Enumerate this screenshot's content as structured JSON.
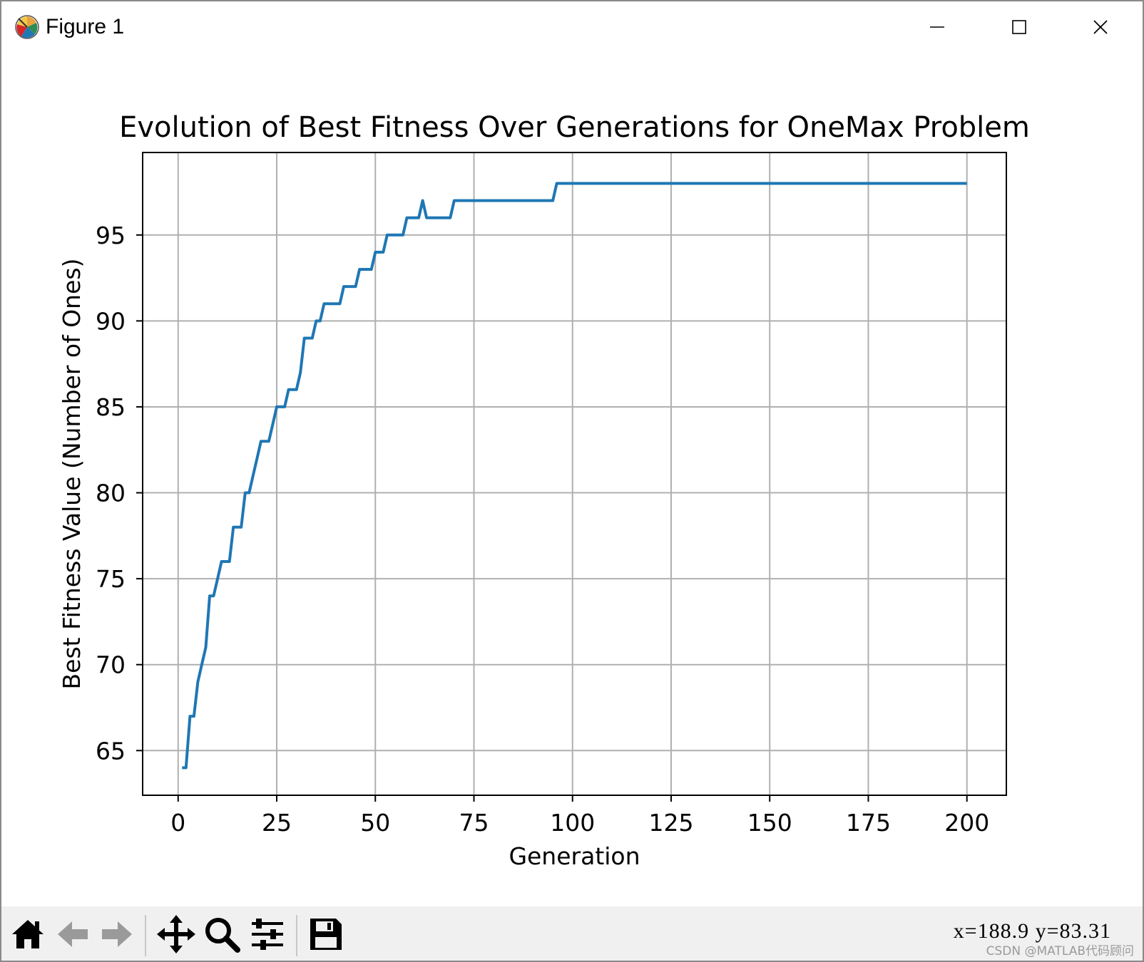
{
  "window": {
    "title": "Figure 1",
    "icon": "matplotlib-logo-icon",
    "controls": {
      "minimize": "minimize-icon",
      "maximize": "maximize-icon",
      "close": "close-icon"
    }
  },
  "toolbar": {
    "buttons": [
      "home-icon",
      "back-arrow-icon",
      "forward-arrow-icon",
      "pan-move-icon",
      "zoom-magnifier-icon",
      "configure-subplots-icon",
      "save-floppy-icon"
    ],
    "coordinates": "x=188.9  y=83.31",
    "watermark": "CSDN @MATLAB代码顾问"
  },
  "colors": {
    "line": "#1f77b4",
    "grid": "#b0b0b0",
    "toolbar_bg": "#f0f0f0"
  },
  "chart_data": {
    "type": "line",
    "title": "Evolution of Best Fitness Over Generations for OneMax Problem",
    "xlabel": "Generation",
    "ylabel": "Best Fitness Value (Number of Ones)",
    "xlim": [
      -9,
      210
    ],
    "ylim": [
      62.4,
      99.8
    ],
    "xticks": [
      0,
      25,
      50,
      75,
      100,
      125,
      150,
      175,
      200
    ],
    "yticks": [
      65,
      70,
      75,
      80,
      85,
      90,
      95
    ],
    "grid": true,
    "series": [
      {
        "color": "#1f77b4",
        "x": [
          1,
          2,
          3,
          4,
          5,
          6,
          7,
          8,
          9,
          10,
          11,
          12,
          13,
          14,
          15,
          16,
          17,
          18,
          19,
          20,
          21,
          22,
          23,
          24,
          25,
          26,
          27,
          28,
          29,
          30,
          31,
          32,
          33,
          34,
          35,
          36,
          37,
          38,
          39,
          40,
          41,
          42,
          43,
          44,
          45,
          46,
          47,
          48,
          49,
          50,
          51,
          52,
          53,
          54,
          55,
          56,
          57,
          58,
          59,
          60,
          61,
          62,
          63,
          64,
          65,
          66,
          67,
          68,
          69,
          70,
          71,
          72,
          73,
          74,
          75,
          76,
          77,
          78,
          79,
          80,
          81,
          82,
          83,
          84,
          85,
          86,
          87,
          88,
          89,
          90,
          91,
          92,
          93,
          94,
          95,
          96,
          97,
          98,
          99,
          100,
          101,
          102,
          103,
          104,
          105,
          106,
          107,
          108,
          109,
          110,
          111,
          112,
          113,
          114,
          115,
          116,
          117,
          118,
          119,
          120,
          121,
          122,
          123,
          124,
          125,
          126,
          127,
          128,
          129,
          130,
          131,
          132,
          133,
          134,
          135,
          136,
          137,
          138,
          139,
          140,
          141,
          142,
          143,
          144,
          145,
          146,
          147,
          148,
          149,
          150,
          151,
          152,
          153,
          154,
          155,
          156,
          157,
          158,
          159,
          160,
          161,
          162,
          163,
          164,
          165,
          166,
          167,
          168,
          169,
          170,
          171,
          172,
          173,
          174,
          175,
          176,
          177,
          178,
          179,
          180,
          181,
          182,
          183,
          184,
          185,
          186,
          187,
          188,
          189,
          190,
          191,
          192,
          193,
          194,
          195,
          196,
          197,
          198,
          199,
          200
        ],
        "values": [
          64,
          64,
          67,
          67,
          69,
          70,
          71,
          74,
          74,
          75,
          76,
          76,
          76,
          78,
          78,
          78,
          80,
          80,
          81,
          82,
          83,
          83,
          83,
          84,
          85,
          85,
          85,
          86,
          86,
          86,
          87,
          89,
          89,
          89,
          90,
          90,
          91,
          91,
          91,
          91,
          91,
          92,
          92,
          92,
          92,
          93,
          93,
          93,
          93,
          94,
          94,
          94,
          95,
          95,
          95,
          95,
          95,
          96,
          96,
          96,
          96,
          97,
          96,
          96,
          96,
          96,
          96,
          96,
          96,
          97,
          97,
          97,
          97,
          97,
          97,
          97,
          97,
          97,
          97,
          97,
          97,
          97,
          97,
          97,
          97,
          97,
          97,
          97,
          97,
          97,
          97,
          97,
          97,
          97,
          97,
          98,
          98,
          98,
          98,
          98,
          98,
          98,
          98,
          98,
          98,
          98,
          98,
          98,
          98,
          98,
          98,
          98,
          98,
          98,
          98,
          98,
          98,
          98,
          98,
          98,
          98,
          98,
          98,
          98,
          98,
          98,
          98,
          98,
          98,
          98,
          98,
          98,
          98,
          98,
          98,
          98,
          98,
          98,
          98,
          98,
          98,
          98,
          98,
          98,
          98,
          98,
          98,
          98,
          98,
          98,
          98,
          98,
          98,
          98,
          98,
          98,
          98,
          98,
          98,
          98,
          98,
          98,
          98,
          98,
          98,
          98,
          98,
          98,
          98,
          98,
          98,
          98,
          98,
          98,
          98,
          98,
          98,
          98,
          98,
          98,
          98,
          98,
          98,
          98,
          98,
          98,
          98,
          98,
          98,
          98,
          98,
          98,
          98,
          98,
          98,
          98,
          98,
          98,
          98,
          98
        ]
      }
    ]
  }
}
